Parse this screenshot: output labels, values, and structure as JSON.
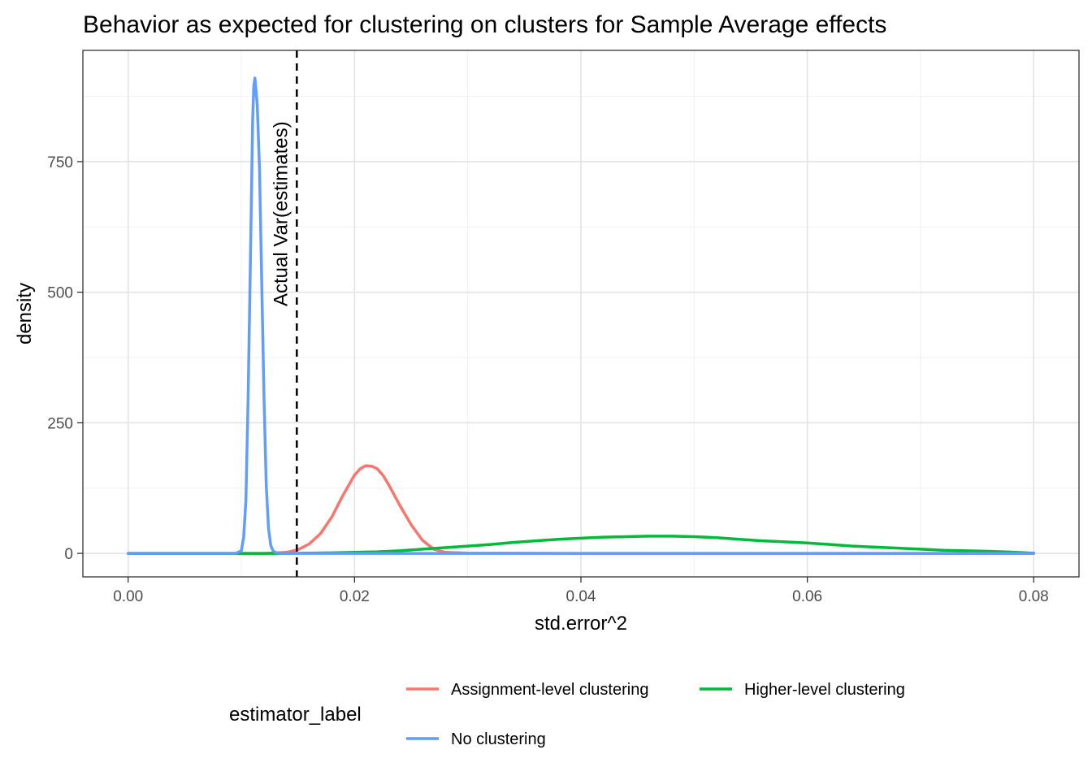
{
  "chart_data": {
    "type": "line",
    "title": "Behavior as expected for clustering on clusters for Sample Average effects",
    "xlabel": "std.error^2",
    "ylabel": "density",
    "xlim": [
      -0.004,
      0.084
    ],
    "ylim": [
      -45,
      963
    ],
    "x_ticks": [
      0.0,
      0.02,
      0.04,
      0.06,
      0.08
    ],
    "x_tick_labels": [
      "0.00",
      "0.02",
      "0.04",
      "0.06",
      "0.08"
    ],
    "y_ticks": [
      0,
      250,
      500,
      750
    ],
    "y_tick_labels": [
      "0",
      "250",
      "500",
      "750"
    ],
    "grid": true,
    "legend": {
      "title": "estimator_label",
      "position": "bottom"
    },
    "vline": {
      "x": 0.0149,
      "label": "Actual Var(estimates)",
      "style": "dashed"
    },
    "series": [
      {
        "name": "Assignment-level clustering",
        "color": "#f8766d",
        "x": [
          0.0,
          0.012,
          0.014,
          0.015,
          0.016,
          0.017,
          0.018,
          0.019,
          0.02,
          0.0205,
          0.021,
          0.0215,
          0.022,
          0.0225,
          0.023,
          0.024,
          0.025,
          0.026,
          0.027,
          0.028,
          0.03,
          0.04,
          0.06,
          0.08
        ],
        "y": [
          0,
          0,
          2,
          7,
          18,
          38,
          70,
          112,
          150,
          162,
          168,
          167,
          162,
          150,
          132,
          92,
          55,
          25,
          8,
          2,
          0.5,
          0,
          0,
          0
        ]
      },
      {
        "name": "Higher-level clustering",
        "color": "#00ba38",
        "x": [
          0.0,
          0.014,
          0.016,
          0.018,
          0.02,
          0.022,
          0.024,
          0.026,
          0.028,
          0.03,
          0.032,
          0.034,
          0.036,
          0.038,
          0.04,
          0.042,
          0.044,
          0.046,
          0.048,
          0.05,
          0.052,
          0.054,
          0.056,
          0.058,
          0.06,
          0.062,
          0.064,
          0.066,
          0.068,
          0.07,
          0.072,
          0.074,
          0.076,
          0.078,
          0.08
        ],
        "y": [
          0,
          0,
          0.5,
          1,
          2,
          3,
          5,
          8,
          11,
          14,
          17,
          21,
          24,
          27,
          29,
          31,
          32,
          33,
          33,
          32,
          30,
          27,
          24,
          22,
          20,
          17,
          14,
          12,
          10,
          8,
          6,
          5,
          4,
          2.5,
          0.5
        ]
      },
      {
        "name": "No clustering",
        "color": "#619cff",
        "x": [
          0.0,
          0.0095,
          0.01,
          0.0102,
          0.0104,
          0.0106,
          0.0108,
          0.011,
          0.0111,
          0.0112,
          0.0114,
          0.0116,
          0.0118,
          0.012,
          0.0122,
          0.0124,
          0.0126,
          0.0128,
          0.013,
          0.0135,
          0.015,
          0.08
        ],
        "y": [
          0,
          0,
          5,
          30,
          100,
          300,
          560,
          830,
          895,
          910,
          860,
          740,
          520,
          300,
          130,
          48,
          15,
          5,
          2,
          0,
          0,
          0
        ]
      }
    ]
  }
}
